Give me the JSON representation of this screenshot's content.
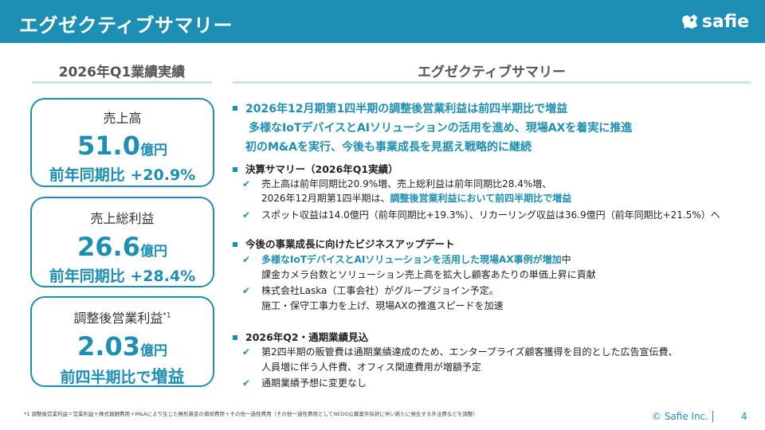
{
  "header": {
    "title": "エグゼクティブサマリー",
    "logo_text": "safie"
  },
  "left": {
    "title": "2026年Q1業績実績",
    "cards": [
      {
        "label": "売上高",
        "sup": "",
        "value": "51.0",
        "unit": "億円",
        "yoy_prefix": "前年同期比",
        "yoy_value": "+20.9%"
      },
      {
        "label": "売上総利益",
        "sup": "",
        "value": "26.6",
        "unit": "億円",
        "yoy_prefix": "前年同期比",
        "yoy_value": "+28.4%"
      },
      {
        "label": "調整後営業利益",
        "sup": "*1",
        "value": "2.03",
        "unit": "億円",
        "yoy_prefix": "前四半期比で",
        "yoy_value": "増益"
      }
    ]
  },
  "right": {
    "title": "エグゼクティブサマリー",
    "lead": [
      "2026年12月期第1四半期の調整後営業利益は前四半期比で増益",
      "多様なIoTデバイスとAIソリューションの活用を進め、現場AXを着実に推進",
      "初のM&Aを実行、今後も事業成長を見据え戦略的に継続"
    ],
    "sections": [
      {
        "title": "決算サマリー（2026年Q1実績）",
        "bullets": [
          {
            "check": "✔",
            "text": "売上高は前年同期比20.9%増、売上総利益は前年同期比28.4%増、",
            "text2_plain": "2026年12月期第1四半期は、",
            "text2_hl": "調整後営業利益において前四半期比で増益"
          },
          {
            "check": "✔",
            "text": "スポット収益は14.0億円（前年同期比+19.3%）、リカーリング収益は36.9億円（前年同期比+21.5%）へ"
          }
        ]
      },
      {
        "title": "今後の事業成長に向けたビジネスアップデート",
        "bullets": [
          {
            "check": "✔",
            "text_hl": "多様なIoTデバイスとAIソリューションを活用した現場AX事例が増加",
            "text_tail": "中",
            "text2": "課金カメラ台数とソリューション売上高を拡大し顧客あたりの単価上昇に貢献"
          },
          {
            "check": "✔",
            "text": "株式会社Laska（工事会社）がグループジョイン予定。",
            "text2": "施工・保守工事力を上げ、現場AXの推進スピードを加速"
          }
        ]
      },
      {
        "title": "2026年Q2・通期業績見込",
        "bullets": [
          {
            "check": "✔",
            "text": "第2四半期の販管費は通期業績達成のため、エンタープライズ顧客獲得を目的とした広告宣伝費、",
            "text2": "人員増に伴う人件費、オフィス関連費用が増額予定"
          },
          {
            "check": "✔",
            "text": "通期業績予想に変更なし"
          }
        ]
      }
    ]
  },
  "footer": {
    "footnote": "*1 調整後営業利益＝営業利益＋株式報酬費用＋M&Aにより生じた無形資産の償却費用＋その他一過性費用（その他一過性費用としてNEDO公募案件採択に伴い新たに発生する外注費などを調整）",
    "copyright": "© Safie Inc.",
    "page": "4"
  },
  "colors": {
    "brand": "#1d8fb4",
    "underline": "#cde3ec"
  }
}
